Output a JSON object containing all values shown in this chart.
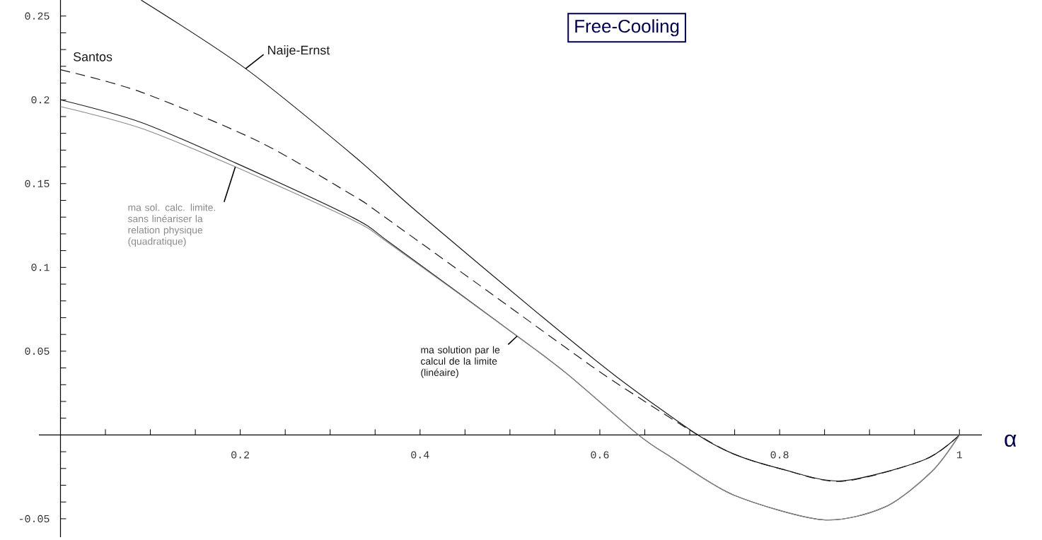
{
  "chart_data": {
    "type": "line",
    "title": "Free-Cooling",
    "xlabel": "α",
    "xlim": [
      -0.024,
      1.025
    ],
    "ylim": [
      -0.061,
      0.26
    ],
    "xticks": [
      {
        "value": 0.05,
        "label": null
      },
      {
        "value": 0.1,
        "label": null
      },
      {
        "value": 0.15,
        "label": null
      },
      0.2,
      {
        "value": 0.25,
        "label": null
      },
      {
        "value": 0.3,
        "label": null
      },
      {
        "value": 0.35,
        "label": null
      },
      0.4,
      {
        "value": 0.45,
        "label": null
      },
      {
        "value": 0.5,
        "label": null
      },
      {
        "value": 0.55,
        "label": null
      },
      0.6,
      {
        "value": 0.65,
        "label": null
      },
      {
        "value": 0.7,
        "label": null
      },
      {
        "value": 0.75,
        "label": null
      },
      0.8,
      {
        "value": 0.85,
        "label": null
      },
      {
        "value": 0.9,
        "label": null
      },
      {
        "value": 0.95,
        "label": null
      },
      1
    ],
    "yticks": [
      -0.05,
      {
        "value": -0.04,
        "label": null
      },
      {
        "value": -0.03,
        "label": null
      },
      {
        "value": -0.02,
        "label": null
      },
      {
        "value": -0.01,
        "label": null
      },
      {
        "value": 0.01,
        "label": null
      },
      {
        "value": 0.02,
        "label": null
      },
      {
        "value": 0.03,
        "label": null
      },
      {
        "value": 0.04,
        "label": null
      },
      0.05,
      {
        "value": 0.06,
        "label": null
      },
      {
        "value": 0.07,
        "label": null
      },
      {
        "value": 0.08,
        "label": null
      },
      {
        "value": 0.09,
        "label": null
      },
      0.1,
      {
        "value": 0.11,
        "label": null
      },
      {
        "value": 0.12,
        "label": null
      },
      {
        "value": 0.13,
        "label": null
      },
      {
        "value": 0.14,
        "label": null
      },
      0.15,
      {
        "value": 0.16,
        "label": null
      },
      {
        "value": 0.17,
        "label": null
      },
      {
        "value": 0.18,
        "label": null
      },
      {
        "value": 0.19,
        "label": null
      },
      0.2,
      {
        "value": 0.21,
        "label": null
      },
      {
        "value": 0.22,
        "label": null
      },
      {
        "value": 0.23,
        "label": null
      },
      {
        "value": 0.24,
        "label": null
      },
      0.25
    ],
    "grid": false,
    "marker": "none",
    "series": [
      {
        "name": "Naije-Ernst",
        "color": "#1a1a1a",
        "line_style": "solid",
        "x": [
          0.0898,
          0.206,
          0.326,
          0.397,
          0.535,
          0.618,
          0.706,
          0.749,
          0.8,
          0.869,
          0.961,
          1
        ],
        "values": [
          0.2595,
          0.2186,
          0.1667,
          0.133,
          0.0709,
          0.035,
          0.001,
          -0.0114,
          -0.02,
          -0.0274,
          -0.0148,
          0
        ]
      },
      {
        "name": "Santos",
        "color": "#1a1a1a",
        "line_style": "dashed",
        "x": [
          0,
          0.0898,
          0.221,
          0.326,
          0.353,
          0.48,
          0.591,
          0.65,
          0.706,
          0.749,
          0.8,
          0.869,
          0.961,
          1
        ],
        "values": [
          0.218,
          0.2046,
          0.175,
          0.1427,
          0.133,
          0.084,
          0.041,
          0.02,
          0.001,
          -0.0114,
          -0.02,
          -0.0277,
          -0.0148,
          0
        ]
      },
      {
        "name": "ma solution par le calcul de la limite (linéaire)",
        "color": "#1a1a1a",
        "line_style": "solid",
        "x": [
          0,
          0.0898,
          0.1945,
          0.326,
          0.369,
          0.508,
          0.563,
          0.643,
          0.68,
          0.749,
          0.848,
          0.917,
          0.969,
          1
        ],
        "values": [
          0.2,
          0.1865,
          0.1624,
          0.1295,
          0.1137,
          0.059,
          0.0367,
          0,
          -0.0135,
          -0.0359,
          -0.0506,
          -0.043,
          -0.022,
          0
        ]
      },
      {
        "name": "ma sol. calc. limite. sans linéariser la relation physique (quadratique)",
        "color": "#8a8a8a",
        "line_style": "solid",
        "x": [
          0,
          0.0898,
          0.1945,
          0.326,
          0.369,
          0.508,
          0.563,
          0.643,
          0.68,
          0.749,
          0.848,
          0.917,
          0.969,
          1
        ],
        "values": [
          0.196,
          0.183,
          0.16,
          0.128,
          0.113,
          0.059,
          0.0367,
          0,
          -0.0135,
          -0.0359,
          -0.0506,
          -0.043,
          -0.022,
          0
        ]
      }
    ]
  }
}
